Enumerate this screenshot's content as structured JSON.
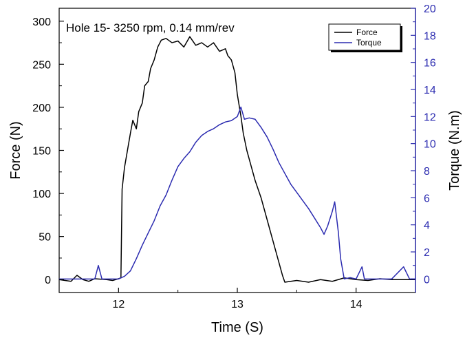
{
  "chart_data": {
    "type": "line",
    "annotation": "Hole 15- 3250 rpm, 0.14 mm/rev",
    "xlabel": "Time (S)",
    "ylabel_left": "Force (N)",
    "ylabel_right": "Torque (N.m)",
    "xlim": [
      11.5,
      14.5
    ],
    "ylim_left": [
      -15,
      315
    ],
    "ylim_right": [
      -1,
      20
    ],
    "x_ticks": [
      12,
      13,
      14
    ],
    "x_tick_labels": [
      "12",
      "13",
      "14"
    ],
    "y_left_ticks": [
      0,
      50,
      100,
      150,
      200,
      250,
      300
    ],
    "y_left_tick_labels": [
      "0",
      "50",
      "100",
      "150",
      "200",
      "250",
      "300"
    ],
    "y_right_ticks": [
      0,
      2,
      4,
      6,
      8,
      10,
      12,
      14,
      16,
      18,
      20
    ],
    "y_right_tick_labels": [
      "0",
      "2",
      "4",
      "6",
      "8",
      "10",
      "12",
      "14",
      "16",
      "18",
      "20"
    ],
    "grid": false,
    "legend_position": "top-right",
    "colors": {
      "force": "#000000",
      "torque": "#2b2bb0",
      "right_axis": "#2b2bb0"
    },
    "series": [
      {
        "name": "Force",
        "axis": "left",
        "color": "#000000",
        "x": [
          11.5,
          11.6,
          11.65,
          11.7,
          11.75,
          11.8,
          11.9,
          11.95,
          12.0,
          12.02,
          12.03,
          12.05,
          12.1,
          12.12,
          12.15,
          12.17,
          12.2,
          12.22,
          12.25,
          12.27,
          12.3,
          12.33,
          12.36,
          12.4,
          12.45,
          12.5,
          12.55,
          12.6,
          12.65,
          12.7,
          12.75,
          12.8,
          12.85,
          12.9,
          12.92,
          12.95,
          12.98,
          13.0,
          13.03,
          13.05,
          13.08,
          13.1,
          13.15,
          13.2,
          13.25,
          13.3,
          13.35,
          13.38,
          13.4,
          13.45,
          13.5,
          13.6,
          13.7,
          13.8,
          13.9,
          14.0,
          14.1,
          14.2,
          14.3,
          14.4,
          14.5
        ],
        "y": [
          0,
          -2,
          5,
          0,
          -2,
          1,
          0,
          -1,
          1,
          2,
          105,
          130,
          170,
          185,
          175,
          195,
          205,
          225,
          230,
          245,
          255,
          270,
          278,
          280,
          275,
          277,
          270,
          282,
          272,
          275,
          270,
          275,
          265,
          268,
          260,
          255,
          240,
          215,
          190,
          170,
          150,
          140,
          115,
          95,
          70,
          45,
          20,
          5,
          -3,
          -2,
          -1,
          -3,
          0,
          -2,
          2,
          0,
          -1,
          1,
          0,
          0,
          0
        ]
      },
      {
        "name": "Torque",
        "axis": "right",
        "color": "#2b2bb0",
        "x": [
          11.5,
          11.7,
          11.8,
          11.83,
          11.86,
          11.9,
          12.0,
          12.05,
          12.1,
          12.15,
          12.2,
          12.25,
          12.3,
          12.35,
          12.4,
          12.45,
          12.5,
          12.55,
          12.6,
          12.65,
          12.7,
          12.75,
          12.8,
          12.85,
          12.9,
          12.95,
          13.0,
          13.03,
          13.06,
          13.1,
          13.15,
          13.2,
          13.25,
          13.3,
          13.35,
          13.4,
          13.45,
          13.5,
          13.55,
          13.6,
          13.65,
          13.7,
          13.73,
          13.76,
          13.8,
          13.82,
          13.85,
          13.87,
          13.9,
          13.95,
          14.0,
          14.05,
          14.07,
          14.1,
          14.2,
          14.3,
          14.4,
          14.45,
          14.5
        ],
        "y": [
          0,
          0,
          0,
          1.0,
          0,
          0,
          0,
          0.2,
          0.6,
          1.5,
          2.5,
          3.4,
          4.3,
          5.4,
          6.2,
          7.3,
          8.3,
          8.9,
          9.4,
          10.1,
          10.6,
          10.9,
          11.1,
          11.4,
          11.6,
          11.7,
          12.0,
          12.7,
          11.8,
          11.9,
          11.8,
          11.2,
          10.5,
          9.6,
          8.6,
          7.8,
          7.0,
          6.4,
          5.8,
          5.2,
          4.5,
          3.8,
          3.3,
          3.9,
          5.0,
          5.7,
          3.5,
          1.5,
          0,
          0.1,
          0,
          0.9,
          0,
          0,
          0,
          0,
          0.9,
          0,
          0
        ]
      }
    ]
  }
}
